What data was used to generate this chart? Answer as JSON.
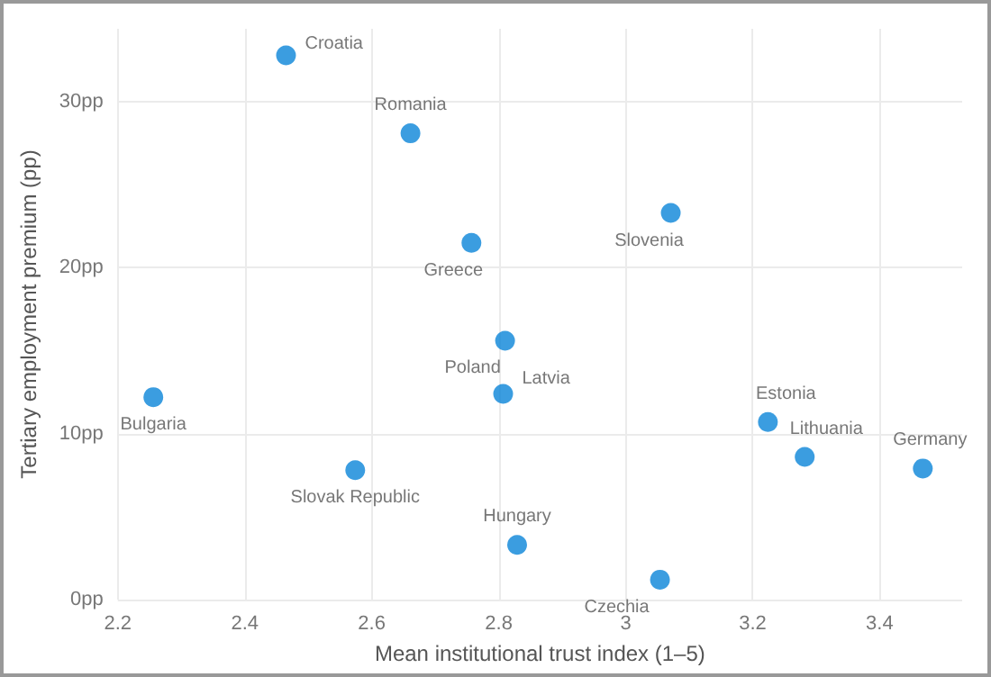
{
  "chart_data": {
    "type": "scatter",
    "xlabel": "Mean institutional trust index (1–5)",
    "ylabel": "Tertiary employment premium (pp)",
    "x": [
      2.465,
      2.661,
      2.757,
      3.071,
      2.81,
      2.807,
      2.256,
      2.574,
      2.829,
      3.054,
      3.224,
      3.282,
      3.468
    ],
    "values": [
      32.8,
      28.1,
      21.5,
      23.3,
      15.6,
      12.4,
      12.2,
      7.8,
      3.3,
      1.2,
      10.7,
      8.6,
      7.9
    ],
    "value_labels": [
      "Croatia",
      "Romania",
      "Greece",
      "Slovenia",
      "Poland",
      "Latvia",
      "Bulgaria",
      "Slovak Republic",
      "Hungary",
      "Czechia",
      "Estonia",
      "Lithuania",
      "Germany"
    ],
    "color": "#0a84d8",
    "marker": "circle",
    "xlim": [
      2.2,
      3.53
    ],
    "xticks": [
      2.2,
      2.4,
      2.6,
      2.8,
      3.0,
      3.2,
      3.4
    ],
    "ylim": [
      0,
      34.4
    ],
    "yticks": [
      {
        "value": 0,
        "label": "0pp"
      },
      {
        "value": 10,
        "label": "10pp"
      },
      {
        "value": 20,
        "label": "20pp"
      },
      {
        "value": 30,
        "label": "30pp"
      }
    ],
    "grid": true
  }
}
